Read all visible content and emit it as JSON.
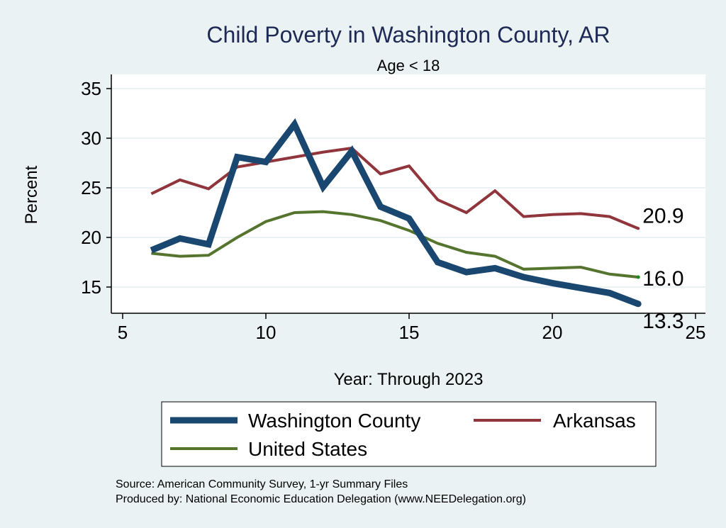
{
  "chart_data": {
    "type": "line",
    "title": "Child Poverty in Washington County, AR",
    "subtitle": "Age < 18",
    "xlabel": "Year: Through 2023",
    "ylabel": "Percent",
    "xlim": [
      5,
      25
    ],
    "ylim": [
      12,
      36
    ],
    "xticks": [
      5,
      10,
      15,
      20,
      25
    ],
    "yticks": [
      15,
      20,
      25,
      30,
      35
    ],
    "grid": true,
    "x": [
      6,
      7,
      8,
      9,
      10,
      11,
      12,
      13,
      14,
      15,
      16,
      17,
      18,
      19,
      20,
      21,
      22,
      23
    ],
    "series": [
      {
        "name": "Washington County",
        "color": "#1a476f",
        "width": 9,
        "end_label": "13.3",
        "values": [
          18.7,
          19.9,
          19.3,
          28.1,
          27.6,
          31.4,
          25.1,
          28.7,
          23.1,
          21.9,
          17.5,
          16.5,
          16.9,
          16.0,
          15.4,
          14.9,
          14.4,
          13.3
        ]
      },
      {
        "name": "Arkansas",
        "color": "#90353b",
        "width": 4,
        "end_label": "20.9",
        "values": [
          24.4,
          25.8,
          24.9,
          27.1,
          27.6,
          28.1,
          28.6,
          29.0,
          26.4,
          27.2,
          23.8,
          22.5,
          24.7,
          22.1,
          22.3,
          22.4,
          22.1,
          20.9
        ]
      },
      {
        "name": "United States",
        "color": "#55752f",
        "width": 4,
        "end_label": "16.0",
        "values": [
          18.4,
          18.1,
          18.2,
          20.0,
          21.6,
          22.5,
          22.6,
          22.3,
          21.7,
          20.7,
          19.4,
          18.5,
          18.1,
          16.8,
          16.9,
          17.0,
          16.3,
          16.0
        ]
      }
    ],
    "legend": "bottom",
    "notes": [
      "Source: American Community Survey, 1-yr Summary Files",
      "Produced by: National Economic Education Delegation (www.NEEDelegation.org)"
    ]
  }
}
